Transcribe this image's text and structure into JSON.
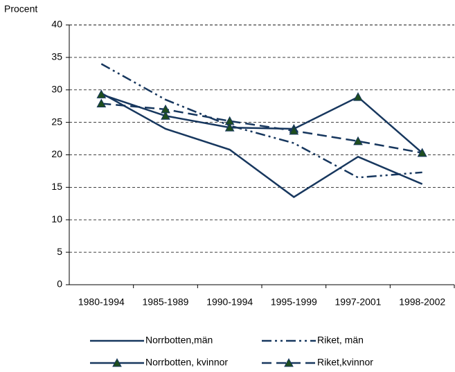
{
  "chart_data": {
    "type": "line",
    "ylabel": "Procent",
    "categories": [
      "1980-1994",
      "1985-1989",
      "1990-1994",
      "1995-1999",
      "1997-2001",
      "1998-2002"
    ],
    "ylim": [
      0,
      40
    ],
    "yticks": [
      0,
      5,
      10,
      15,
      20,
      25,
      30,
      35,
      40
    ],
    "grid": true,
    "series": [
      {
        "name": "Norrbotten,män",
        "color": "#17375e",
        "line_style": "solid",
        "marker": "none",
        "values": [
          29.5,
          24,
          20.8,
          13.5,
          19.7,
          15.5
        ]
      },
      {
        "name": "Riket, män",
        "color": "#17375e",
        "line_style": "dash-dot-dot",
        "marker": "none",
        "values": [
          34,
          28.5,
          24.5,
          21.8,
          16.5,
          17.3
        ]
      },
      {
        "name": "Norrbotten, kvinnor",
        "color": "#17375e",
        "line_style": "solid",
        "marker": "triangle",
        "values": [
          29.3,
          26,
          24.2,
          24,
          28.9,
          20.3
        ]
      },
      {
        "name": "Riket,kvinnor",
        "color": "#17375e",
        "line_style": "dash",
        "marker": "triangle",
        "values": [
          27.9,
          27,
          25.2,
          23.7,
          22.1,
          20.3
        ]
      }
    ]
  }
}
